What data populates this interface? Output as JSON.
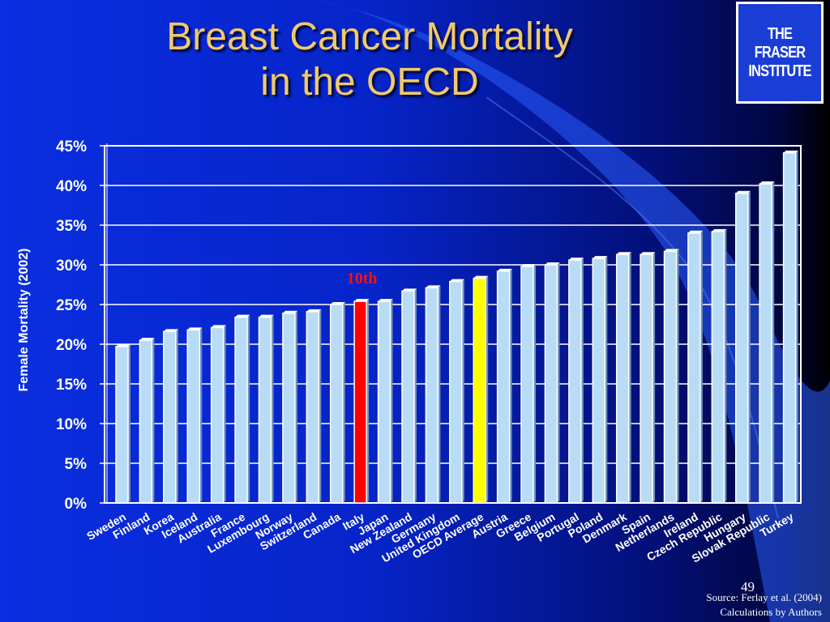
{
  "slide": {
    "title_line1": "Breast Cancer Mortality",
    "title_line2": "in the OECD",
    "logo_line1": "THE FRASER",
    "logo_line2": "INSTITUTE",
    "source_line1": "Source: Ferlay et al. (2004)",
    "source_line2": "Calculations by Authors",
    "page_number": "49"
  },
  "chart_data": {
    "type": "bar",
    "title": "",
    "xlabel": "",
    "ylabel": "Female Mortality (2002)",
    "ylim": [
      0,
      45
    ],
    "yticks": [
      0,
      5,
      10,
      15,
      20,
      25,
      30,
      35,
      40,
      45
    ],
    "ytick_format": "percent",
    "grid": true,
    "categories": [
      "Sweden",
      "Finland",
      "Korea",
      "Iceland",
      "Australia",
      "France",
      "Luxembourg",
      "Norway",
      "Switzerland",
      "Canada",
      "Italy",
      "Japan",
      "New Zealand",
      "Germany",
      "United Kingdom",
      "OECD Average",
      "Austria",
      "Greece",
      "Belgium",
      "Portugal",
      "Poland",
      "Denmark",
      "Spain",
      "Netherlands",
      "Ireland",
      "Czech Republic",
      "Hungary",
      "Slovak Republic",
      "Turkey"
    ],
    "values": [
      19.7,
      20.5,
      21.6,
      21.8,
      22.1,
      23.4,
      23.4,
      23.9,
      24.1,
      25.0,
      25.4,
      25.4,
      26.7,
      27.1,
      27.9,
      28.3,
      29.2,
      29.8,
      30.0,
      30.6,
      30.8,
      31.3,
      31.3,
      31.7,
      34.0,
      34.2,
      39.0,
      40.2,
      44.1
    ],
    "colors": {
      "default": "#b8dcf6",
      "highlight": "#ff0000",
      "average": "#ffff00",
      "bar_edge": "#ffffff",
      "grid": "#ffffff"
    },
    "highlight_category": "Italy",
    "average_category": "OECD Average",
    "annotation": {
      "text": "10th",
      "category": "Italy",
      "color": "#ff1010"
    }
  }
}
